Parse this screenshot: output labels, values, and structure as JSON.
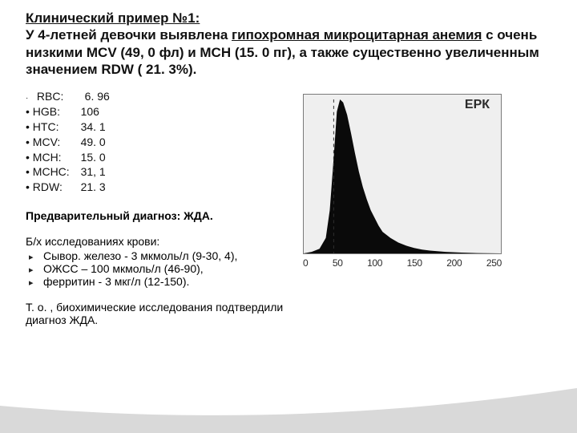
{
  "title": {
    "line1a": "Клинический пример №1:",
    "line2a": "У 4-летней девочки выявлена ",
    "line2b": "гипохромная микроцитарная анемия",
    "line2c": " с очень низкими MCV (49, 0 фл) и MCH (15. 0 пг), а также существенно увеличенным значением  RDW ( 21. 3%)."
  },
  "cbc": [
    {
      "label": "RBC:",
      "value": "6. 96",
      "dot": "small"
    },
    {
      "label": "HGB:",
      "value": "106",
      "dot": "bullet"
    },
    {
      "label": "HTC:",
      "value": "34. 1",
      "dot": "bullet"
    },
    {
      "label": "MCV:",
      "value": "49. 0",
      "dot": "bullet"
    },
    {
      "label": "MCH:",
      "value": "15. 0",
      "dot": "bullet"
    },
    {
      "label": "MCHC:",
      "value": "31, 1",
      "dot": "bullet"
    },
    {
      "label": "RDW:",
      "value": "21. 3",
      "dot": "bullet"
    }
  ],
  "pdx": {
    "label": "Предварительный диагноз: ЖДА."
  },
  "biochem": {
    "heading": "Б/х исследованиях крови:",
    "items": [
      "Сывор. железо - 3 мкмоль/л (9-30, 4),",
      "ОЖСС – 100 мкмоль/л (46-90),",
      "ферритин - 3 мкг/л (12-150)."
    ]
  },
  "conclusion": "Т. о. , биохимические исследования подтвердили диагноз ЖДА.",
  "chart": {
    "label": "ЕРК",
    "type": "histogram",
    "xticks": [
      "0",
      "50",
      "100",
      "150",
      "200",
      "250"
    ],
    "xlim": [
      0,
      250
    ],
    "data_x": [
      0,
      10,
      20,
      28,
      33,
      38,
      42,
      46,
      50,
      55,
      60,
      65,
      70,
      75,
      80,
      85,
      90,
      95,
      100,
      110,
      120,
      130,
      140,
      150,
      160,
      180,
      200,
      220,
      250
    ],
    "data_y": [
      0,
      1,
      3,
      10,
      28,
      62,
      92,
      100,
      98,
      90,
      78,
      65,
      53,
      43,
      35,
      28,
      23,
      18,
      14,
      10,
      7,
      5,
      3.5,
      2.5,
      1.8,
      1.0,
      0.5,
      0.2,
      0
    ],
    "fill_color": "#0a0a0a",
    "background_color": "#efefef",
    "grid_color": "#7a7a7a",
    "dash_color": "#303030",
    "dash_x": 38
  },
  "swoosh_colors": [
    "#d9d9d9",
    "#bfbfbf",
    "#a6a6a6"
  ]
}
